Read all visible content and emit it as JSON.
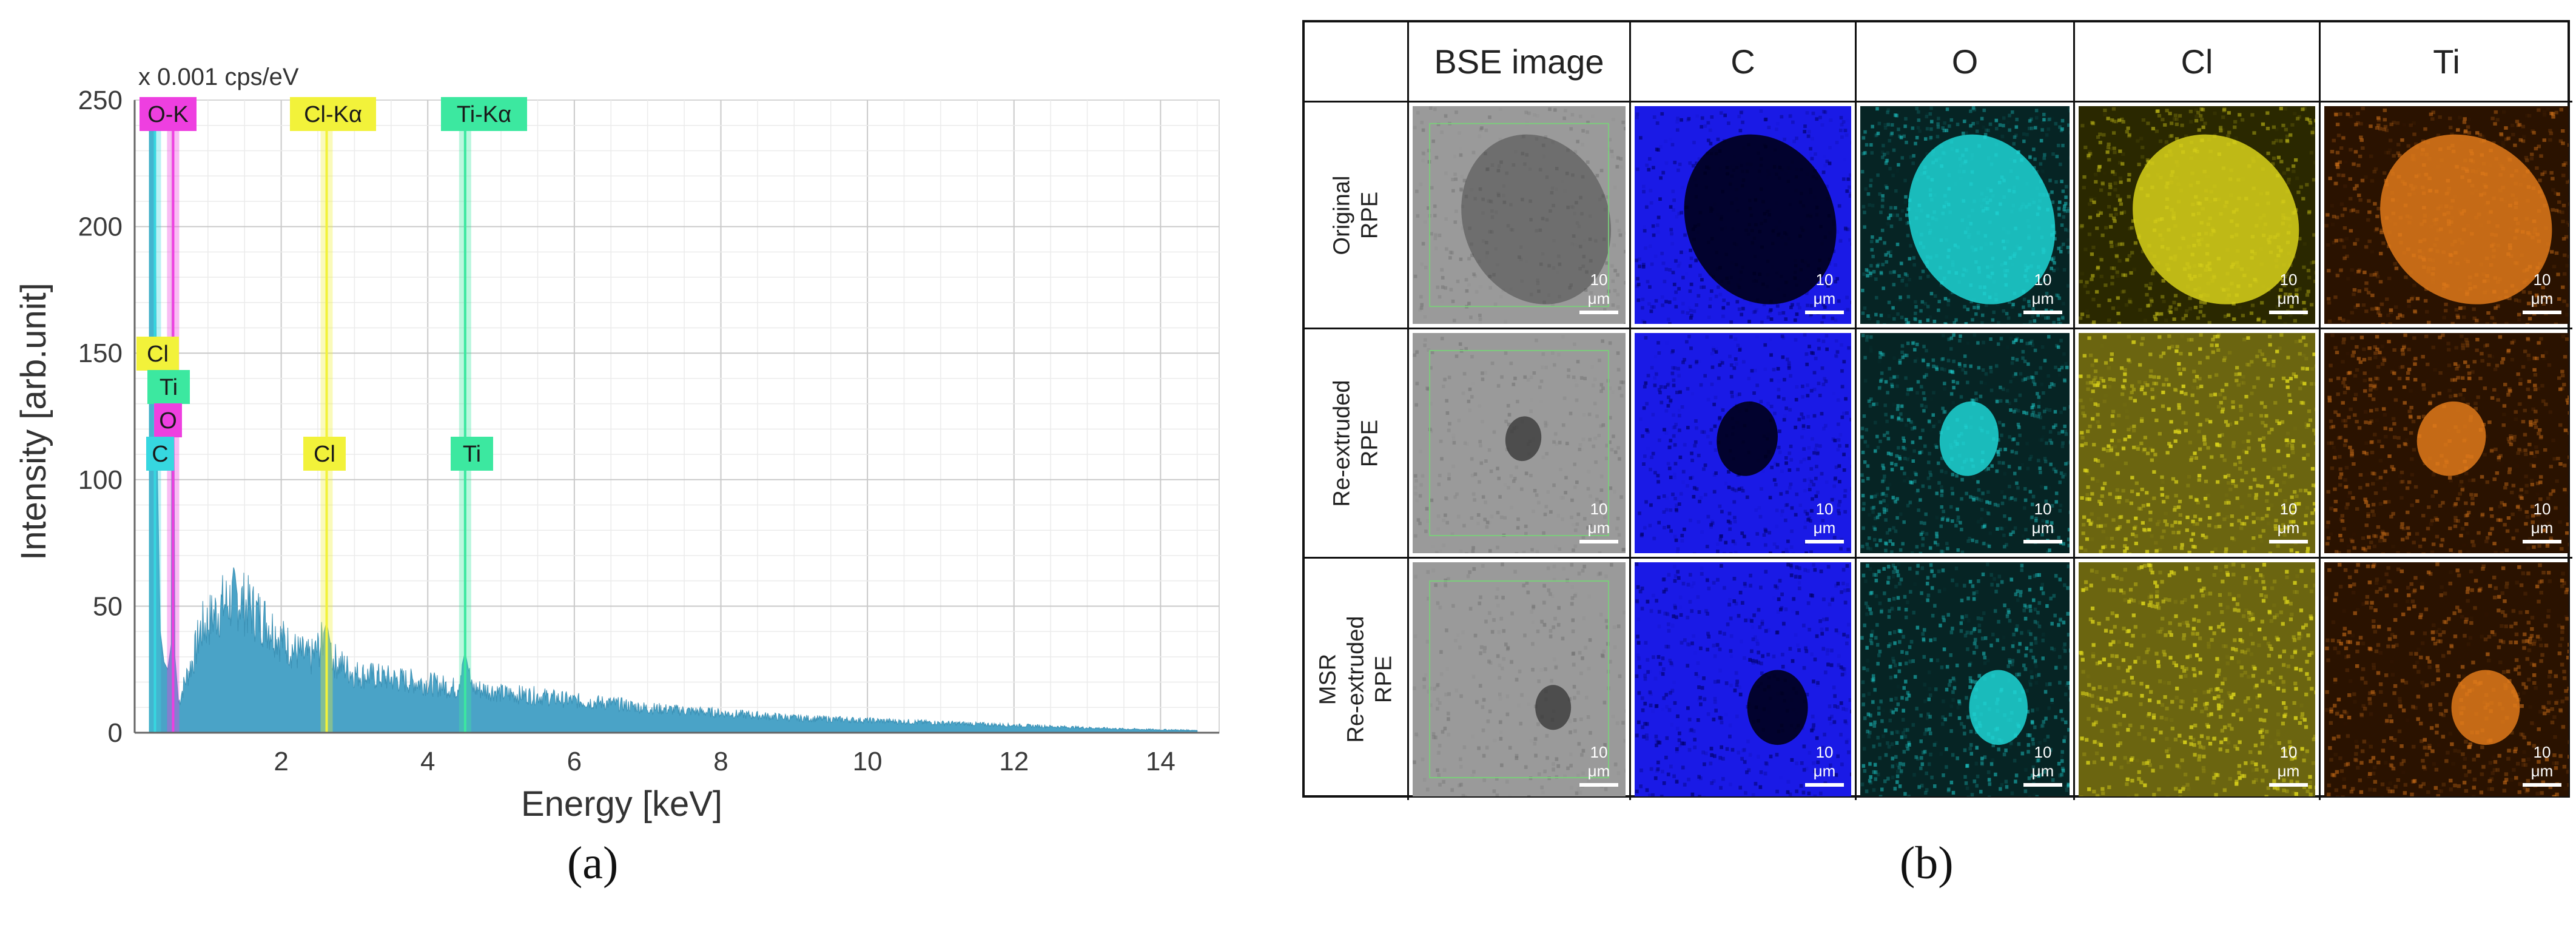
{
  "panels": {
    "a_label": "(a)",
    "b_label": "(b)"
  },
  "chart_data": {
    "type": "area",
    "title": "",
    "unit_note": "x 0.001 cps/eV",
    "xlabel": "Energy  [keV]",
    "ylabel": "Intensity [arb.unit]",
    "xlim": [
      0,
      14.8
    ],
    "ylim": [
      0,
      250
    ],
    "xticks": [
      2,
      4,
      6,
      8,
      10,
      12,
      14
    ],
    "yticks": [
      0,
      50,
      100,
      150,
      200,
      250
    ],
    "grid": true,
    "fill_color": "#4aa3c7",
    "series": [
      {
        "x": [
          0.2,
          0.25,
          0.28,
          0.3,
          0.35,
          0.4,
          0.45,
          0.5,
          0.52,
          0.55,
          0.6,
          0.7,
          0.8,
          0.9,
          1.0,
          1.2,
          1.4,
          1.6,
          1.8,
          2.0,
          2.2,
          2.4,
          2.55,
          2.62,
          2.7,
          2.85,
          3.0,
          3.5,
          4.0,
          4.4,
          4.51,
          4.6,
          4.9,
          5.0,
          5.5,
          6.0,
          6.5,
          7.0,
          7.5,
          8.0,
          8.5,
          9.0,
          9.5,
          10.0,
          10.5,
          11.0,
          11.5,
          12.0,
          12.5,
          13.0,
          13.5,
          14.0,
          14.5
        ],
        "y": [
          248,
          248,
          248,
          120,
          40,
          28,
          25,
          35,
          250,
          30,
          12,
          22,
          30,
          42,
          45,
          52,
          55,
          50,
          45,
          38,
          33,
          30,
          36,
          44,
          30,
          27,
          24,
          22,
          20,
          18,
          32,
          18,
          17,
          16,
          15,
          13,
          12,
          10,
          9,
          8,
          7,
          6,
          5.5,
          5,
          4.5,
          4,
          3.5,
          3,
          2.5,
          2,
          1.5,
          1.2,
          1
        ]
      }
    ],
    "peak_markers": [
      {
        "label": "C",
        "x": 0.277,
        "color": "#36d7e0"
      },
      {
        "label": "O-K",
        "x": 0.525,
        "color": "#ee3fe0"
      },
      {
        "label": "Cl-Kα",
        "x": 2.62,
        "color": "#f2f23a"
      },
      {
        "label": "Ti-Kα",
        "x": 4.51,
        "color": "#3ce8a0"
      }
    ],
    "annotations": [
      {
        "label": "O-K",
        "color": "#ee3fe0"
      },
      {
        "label": "Cl-Kα",
        "color": "#f2f23a"
      },
      {
        "label": "Ti-Kα",
        "color": "#3ce8a0"
      },
      {
        "label": "Cl",
        "color": "#f2f23a"
      },
      {
        "label": "Ti",
        "color": "#3ce8a0"
      },
      {
        "label": "O",
        "color": "#ee3fe0"
      },
      {
        "label": "C",
        "color": "#36d7e0"
      },
      {
        "label": "Cl",
        "color": "#f2f23a"
      },
      {
        "label": "Ti",
        "color": "#3ce8a0"
      }
    ]
  },
  "element_maps": {
    "headers": [
      "",
      "BSE image",
      "C",
      "O",
      "Cl",
      "Ti"
    ],
    "rows": [
      {
        "label_lines": [
          "Original",
          "RPE"
        ]
      },
      {
        "label_lines": [
          "Re-extruded",
          "RPE"
        ]
      },
      {
        "label_lines": [
          "MSR",
          "Re-extruded",
          "RPE"
        ]
      }
    ],
    "scale_bar_text": "10 μm",
    "map_colors": {
      "bse": "#8c8c8c",
      "C": "#1a1ae6",
      "O": "#1fd6d6",
      "Cl": "#d9d21a",
      "Ti": "#e07a1a"
    }
  }
}
